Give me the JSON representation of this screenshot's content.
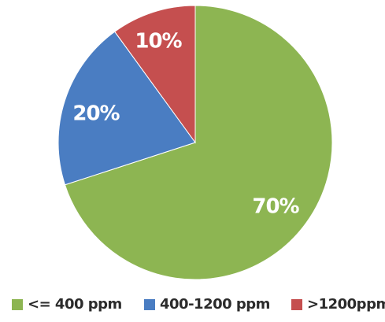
{
  "chart_data": {
    "type": "pie",
    "categories": [
      "<= 400 ppm",
      "400-1200 ppm",
      ">1200ppm"
    ],
    "values": [
      70,
      20,
      10
    ],
    "labels": [
      "70%",
      "20%",
      "10%"
    ],
    "colors": [
      "#8DB552",
      "#4A7DC2",
      "#C54F4F"
    ],
    "start_angle_deg": 0,
    "direction": "clockwise",
    "legend_position": "bottom",
    "title": ""
  }
}
